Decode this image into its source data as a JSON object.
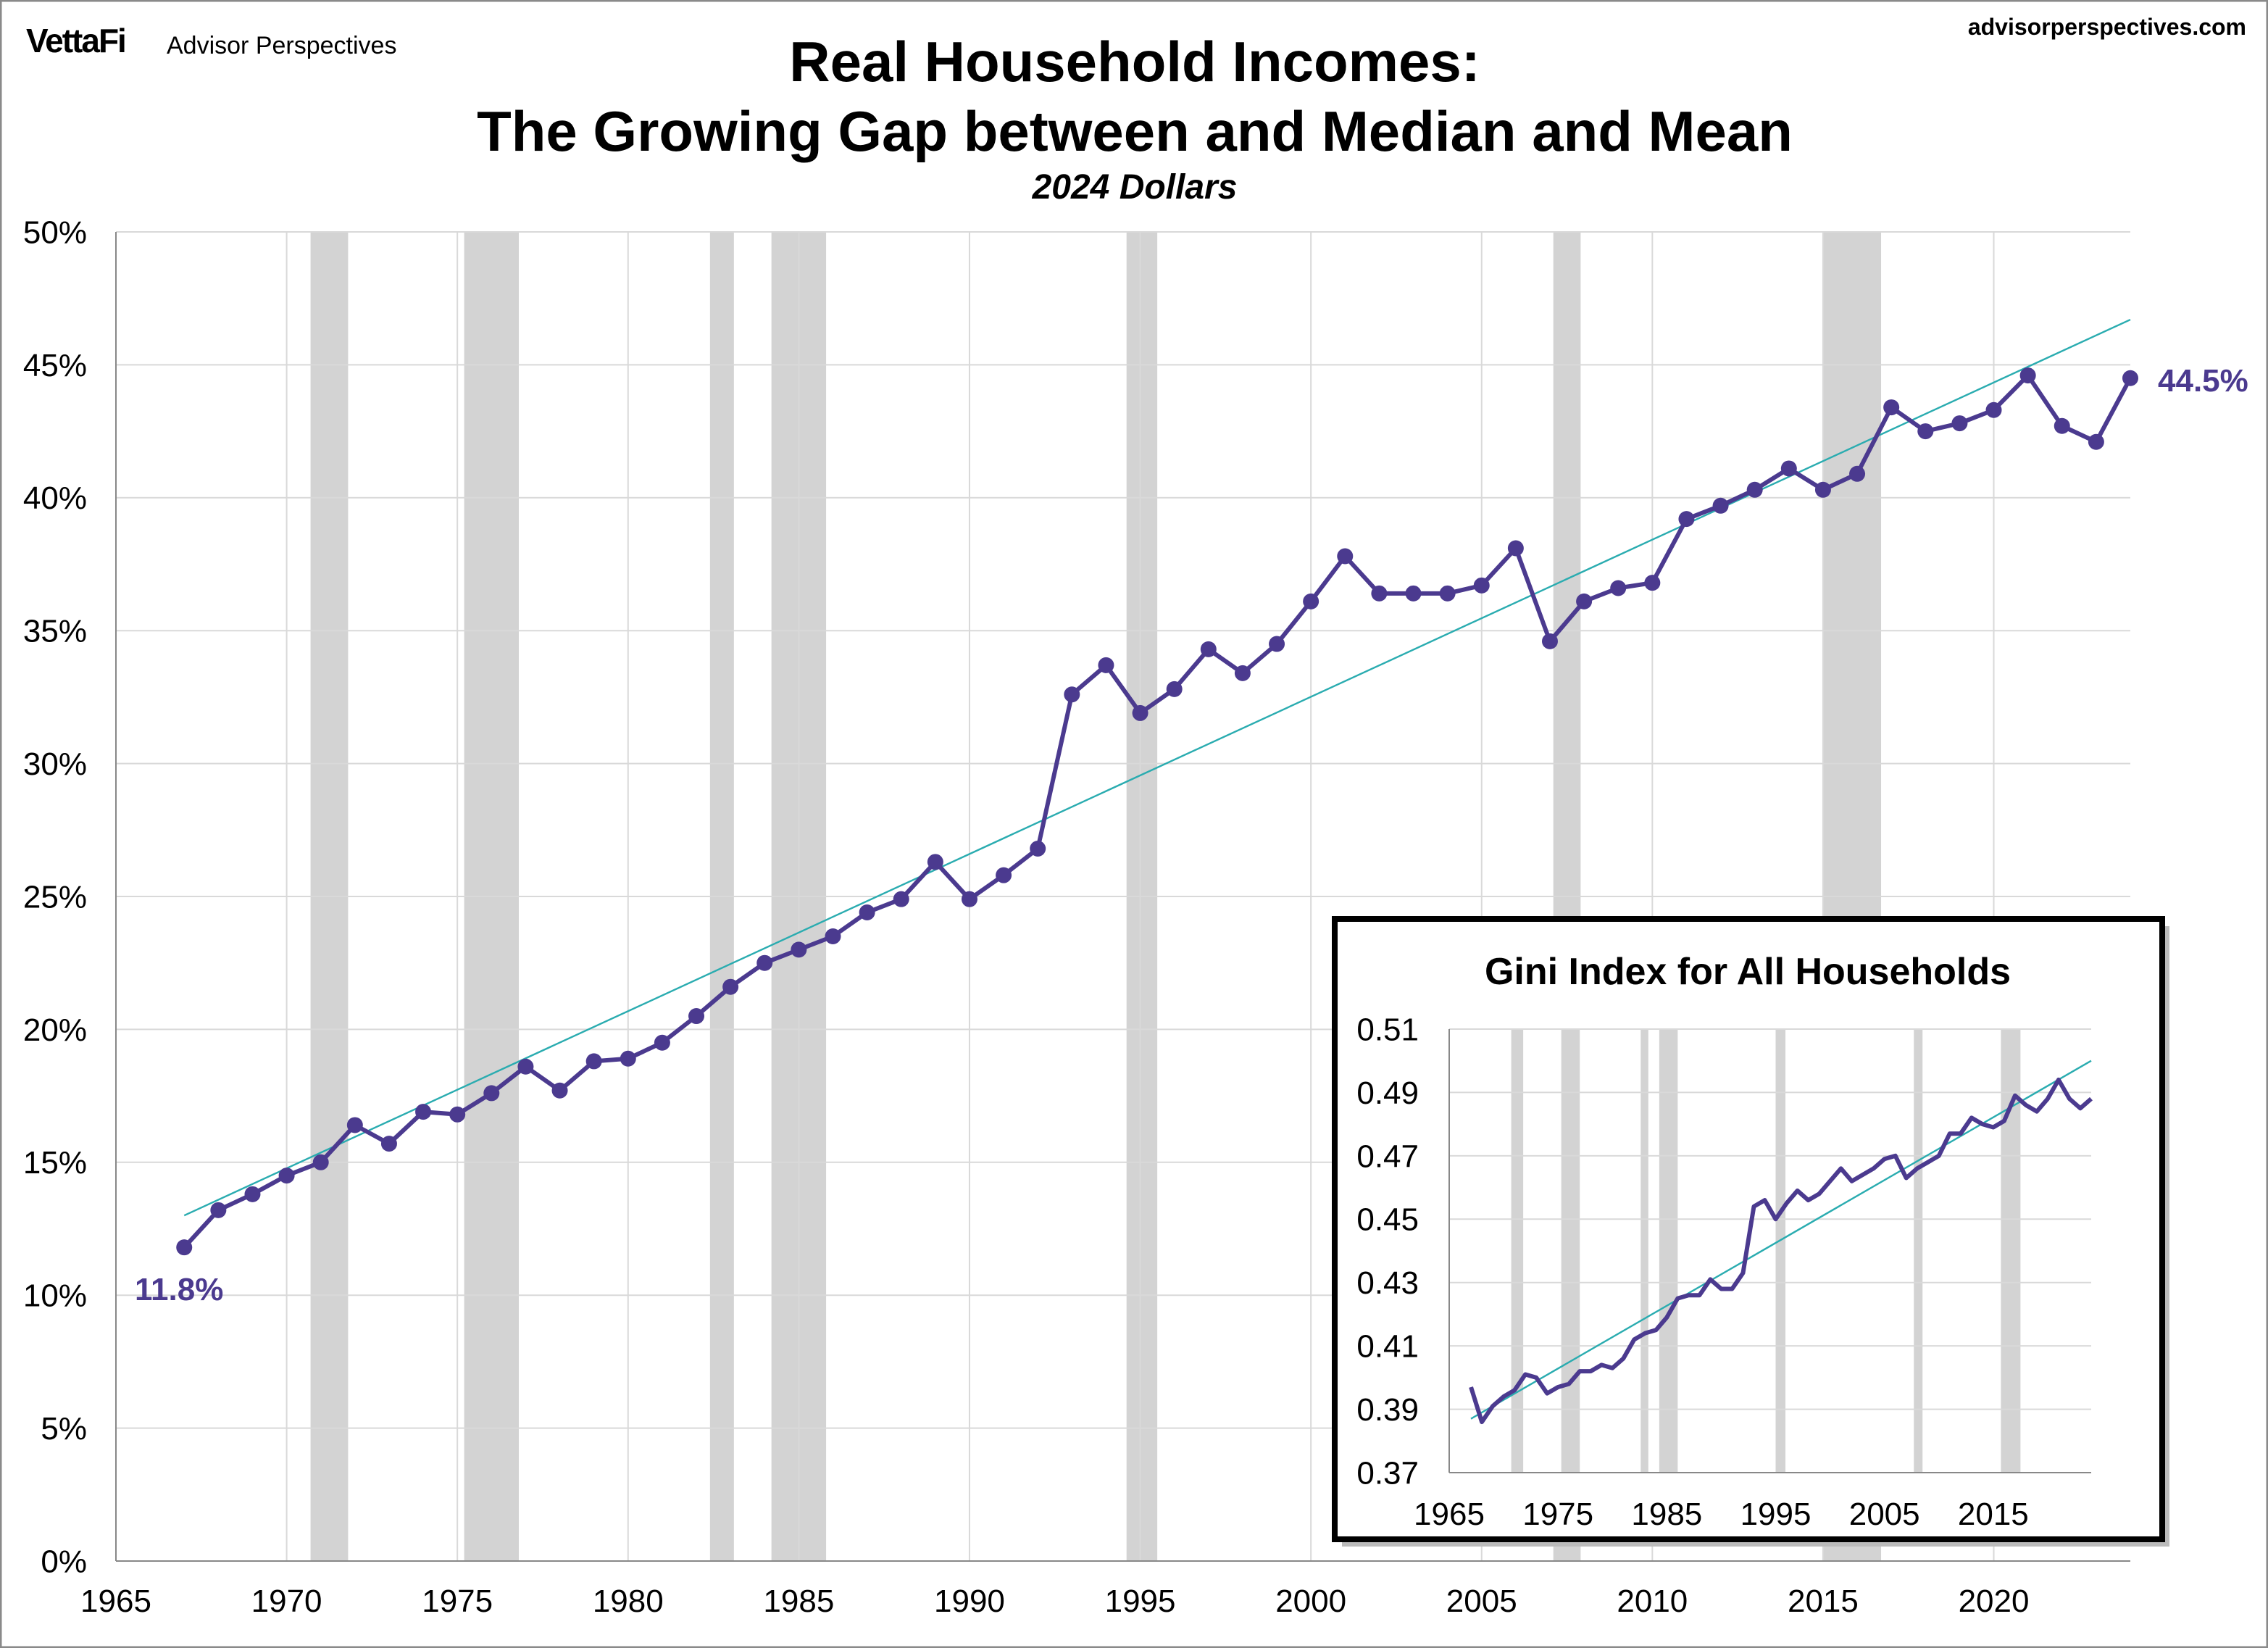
{
  "header": {
    "logo_text": "VettaFi",
    "brand": "Advisor Perspectives",
    "website": "advisorperspectives.com"
  },
  "colors": {
    "series": "#4B3A8F",
    "trend": "#2AACB0",
    "recession": "#D3D3D3",
    "grid": "#D9D9D9"
  },
  "chart_data": [
    {
      "type": "line",
      "title": "Real Household Incomes:",
      "title_line2": "The Growing Gap between and Median and Mean",
      "subtitle": "2024 Dollars",
      "xlabel": "",
      "ylabel": "",
      "xlim": [
        1965,
        2024
      ],
      "ylim": [
        0,
        50
      ],
      "grid": true,
      "x_ticks": [
        "1965",
        "1970",
        "1975",
        "1980",
        "1985",
        "1990",
        "1995",
        "2000",
        "2005",
        "2010",
        "2015",
        "2020"
      ],
      "y_ticks": [
        "0%",
        "5%",
        "10%",
        "15%",
        "20%",
        "25%",
        "30%",
        "35%",
        "40%",
        "45%",
        "50%"
      ],
      "recession_bands": [
        [
          1970.7,
          1971.8
        ],
        [
          1975.2,
          1976.8
        ],
        [
          1982.4,
          1983.1
        ],
        [
          1984.2,
          1985.8
        ],
        [
          1994.6,
          1995.5
        ],
        [
          2007.1,
          2007.9
        ],
        [
          2015.0,
          2016.7
        ]
      ],
      "x": [
        1967,
        1968,
        1969,
        1970,
        1971,
        1972,
        1973,
        1974,
        1975,
        1976,
        1977,
        1978,
        1979,
        1980,
        1981,
        1982,
        1983,
        1984,
        1985,
        1986,
        1987,
        1988,
        1989,
        1990,
        1991,
        1992,
        1993,
        1994,
        1995,
        1996,
        1997,
        1998,
        1999,
        2000,
        2001,
        2002,
        2003,
        2004,
        2005,
        2006,
        2007,
        2008,
        2009,
        2010,
        2011,
        2012,
        2013,
        2014,
        2015,
        2016,
        2017,
        2018,
        2019,
        2020,
        2021,
        2022,
        2023,
        2024
      ],
      "series": [
        {
          "values": [
            11.8,
            13.2,
            13.8,
            14.5,
            15.0,
            16.4,
            15.7,
            16.9,
            16.8,
            17.6,
            18.6,
            17.7,
            18.8,
            18.9,
            19.5,
            20.5,
            21.6,
            22.5,
            23.0,
            23.5,
            24.4,
            24.9,
            26.3,
            24.9,
            25.8,
            26.8,
            32.6,
            33.7,
            31.9,
            32.8,
            34.3,
            33.4,
            34.5,
            36.1,
            37.8,
            36.4,
            36.4,
            36.4,
            36.7,
            38.1,
            34.6,
            36.1,
            36.6,
            36.8,
            39.2,
            39.7,
            40.3,
            41.1,
            40.3,
            40.9,
            43.4,
            42.5,
            42.8,
            43.3,
            44.6,
            42.7,
            42.1,
            44.5
          ]
        }
      ],
      "trendline": {
        "x": [
          1967,
          2024
        ],
        "y": [
          13.0,
          46.7
        ]
      },
      "annotations": {
        "first": "11.8%",
        "last": "44.5%"
      }
    },
    {
      "type": "line",
      "title": "Gini Index for All Households",
      "xlim": [
        1965,
        2024
      ],
      "ylim": [
        0.37,
        0.51
      ],
      "grid": true,
      "x_ticks": [
        "1965",
        "1975",
        "1985",
        "1995",
        "2005",
        "2015"
      ],
      "y_ticks": [
        "0.37",
        "0.39",
        "0.41",
        "0.43",
        "0.45",
        "0.47",
        "0.49",
        "0.51"
      ],
      "recession_bands": [
        [
          1970.7,
          1971.8
        ],
        [
          1975.3,
          1977.0
        ],
        [
          1982.6,
          1983.3
        ],
        [
          1984.3,
          1986.0
        ],
        [
          1995.0,
          1995.9
        ],
        [
          2007.7,
          2008.5
        ],
        [
          2015.7,
          2017.5
        ]
      ],
      "series": [
        {
          "values": [
            0.397,
            0.386,
            0.391,
            0.394,
            0.396,
            0.401,
            0.4,
            0.395,
            0.397,
            0.398,
            0.402,
            0.402,
            0.404,
            0.403,
            0.406,
            0.412,
            0.414,
            0.415,
            0.419,
            0.425,
            0.426,
            0.426,
            0.431,
            0.428,
            0.428,
            0.433,
            0.454,
            0.456,
            0.45,
            0.455,
            0.459,
            0.456,
            0.458,
            0.462,
            0.466,
            0.462,
            0.464,
            0.466,
            0.469,
            0.47,
            0.463,
            0.466,
            0.468,
            0.47,
            0.477,
            0.477,
            0.482,
            0.48,
            0.479,
            0.481,
            0.489,
            0.486,
            0.484,
            0.488,
            0.494,
            0.488,
            0.485,
            0.488
          ]
        }
      ],
      "trendline": {
        "x": [
          1967,
          2024
        ],
        "y": [
          0.387,
          0.5
        ]
      }
    }
  ]
}
